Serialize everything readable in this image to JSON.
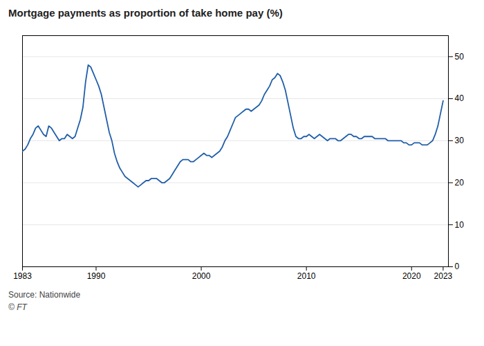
{
  "chart_data": {
    "type": "line",
    "title": "Mortgage payments as proportion of take home pay (%)",
    "source": "Source: Nationwide",
    "watermark": "© FT",
    "color": "#1f5ea8",
    "grid": true,
    "xlim": [
      1983,
      2023.5
    ],
    "ylim": [
      0,
      55
    ],
    "xticks": [
      1983,
      1990,
      2000,
      2010,
      2020,
      2023
    ],
    "yticks": [
      0,
      10,
      20,
      30,
      40,
      50
    ],
    "x": [
      1983.0,
      1983.25,
      1983.5,
      1983.75,
      1984.0,
      1984.25,
      1984.5,
      1984.75,
      1985.0,
      1985.25,
      1985.5,
      1985.75,
      1986.0,
      1986.25,
      1986.5,
      1986.75,
      1987.0,
      1987.25,
      1987.5,
      1987.75,
      1988.0,
      1988.25,
      1988.5,
      1988.75,
      1989.0,
      1989.25,
      1989.5,
      1989.75,
      1990.0,
      1990.25,
      1990.5,
      1990.75,
      1991.0,
      1991.25,
      1991.5,
      1991.75,
      1992.0,
      1992.25,
      1992.5,
      1992.75,
      1993.0,
      1993.25,
      1993.5,
      1993.75,
      1994.0,
      1994.25,
      1994.5,
      1994.75,
      1995.0,
      1995.25,
      1995.5,
      1995.75,
      1996.0,
      1996.25,
      1996.5,
      1996.75,
      1997.0,
      1997.25,
      1997.5,
      1997.75,
      1998.0,
      1998.25,
      1998.5,
      1998.75,
      1999.0,
      1999.25,
      1999.5,
      1999.75,
      2000.0,
      2000.25,
      2000.5,
      2000.75,
      2001.0,
      2001.25,
      2001.5,
      2001.75,
      2002.0,
      2002.25,
      2002.5,
      2002.75,
      2003.0,
      2003.25,
      2003.5,
      2003.75,
      2004.0,
      2004.25,
      2004.5,
      2004.75,
      2005.0,
      2005.25,
      2005.5,
      2005.75,
      2006.0,
      2006.25,
      2006.5,
      2006.75,
      2007.0,
      2007.25,
      2007.5,
      2007.75,
      2008.0,
      2008.25,
      2008.5,
      2008.75,
      2009.0,
      2009.25,
      2009.5,
      2009.75,
      2010.0,
      2010.25,
      2010.5,
      2010.75,
      2011.0,
      2011.25,
      2011.5,
      2011.75,
      2012.0,
      2012.25,
      2012.5,
      2012.75,
      2013.0,
      2013.25,
      2013.5,
      2013.75,
      2014.0,
      2014.25,
      2014.5,
      2014.75,
      2015.0,
      2015.25,
      2015.5,
      2015.75,
      2016.0,
      2016.25,
      2016.5,
      2016.75,
      2017.0,
      2017.25,
      2017.5,
      2017.75,
      2018.0,
      2018.25,
      2018.5,
      2018.75,
      2019.0,
      2019.25,
      2019.5,
      2019.75,
      2020.0,
      2020.25,
      2020.5,
      2020.75,
      2021.0,
      2021.25,
      2021.5,
      2021.75,
      2022.0,
      2022.25,
      2022.5,
      2022.75,
      2023.0
    ],
    "values": [
      27.5,
      28.0,
      29.0,
      30.5,
      31.5,
      33.0,
      33.5,
      32.5,
      31.5,
      31.0,
      33.5,
      33.0,
      32.0,
      31.0,
      30.0,
      30.5,
      30.5,
      31.5,
      31.0,
      30.5,
      31.0,
      33.0,
      35.0,
      38.0,
      44.0,
      48.0,
      47.5,
      46.0,
      44.5,
      43.0,
      41.0,
      38.0,
      35.0,
      32.0,
      30.0,
      27.0,
      25.0,
      23.5,
      22.5,
      21.5,
      21.0,
      20.5,
      20.0,
      19.5,
      19.0,
      19.5,
      20.0,
      20.5,
      20.5,
      21.0,
      21.0,
      21.0,
      20.5,
      20.0,
      20.0,
      20.5,
      21.0,
      22.0,
      23.0,
      24.0,
      25.0,
      25.5,
      25.5,
      25.5,
      25.0,
      25.0,
      25.5,
      26.0,
      26.5,
      27.0,
      26.5,
      26.5,
      26.0,
      26.5,
      27.0,
      27.5,
      28.5,
      30.0,
      31.0,
      32.5,
      34.0,
      35.5,
      36.0,
      36.5,
      37.0,
      37.5,
      37.5,
      37.0,
      37.5,
      38.0,
      38.5,
      39.5,
      41.0,
      42.0,
      43.0,
      44.5,
      45.0,
      46.0,
      45.5,
      44.0,
      42.0,
      39.0,
      36.0,
      33.0,
      31.0,
      30.5,
      30.5,
      31.0,
      31.0,
      31.5,
      31.0,
      30.5,
      31.0,
      31.5,
      31.0,
      30.5,
      30.0,
      30.5,
      30.5,
      30.5,
      30.0,
      30.0,
      30.5,
      31.0,
      31.5,
      31.5,
      31.0,
      31.0,
      30.5,
      30.5,
      31.0,
      31.0,
      31.0,
      31.0,
      30.5,
      30.5,
      30.5,
      30.5,
      30.5,
      30.0,
      30.0,
      30.0,
      30.0,
      30.0,
      30.0,
      29.5,
      29.5,
      29.0,
      29.0,
      29.5,
      29.5,
      29.5,
      29.0,
      29.0,
      29.0,
      29.5,
      30.0,
      31.5,
      33.5,
      36.5,
      39.5
    ]
  }
}
